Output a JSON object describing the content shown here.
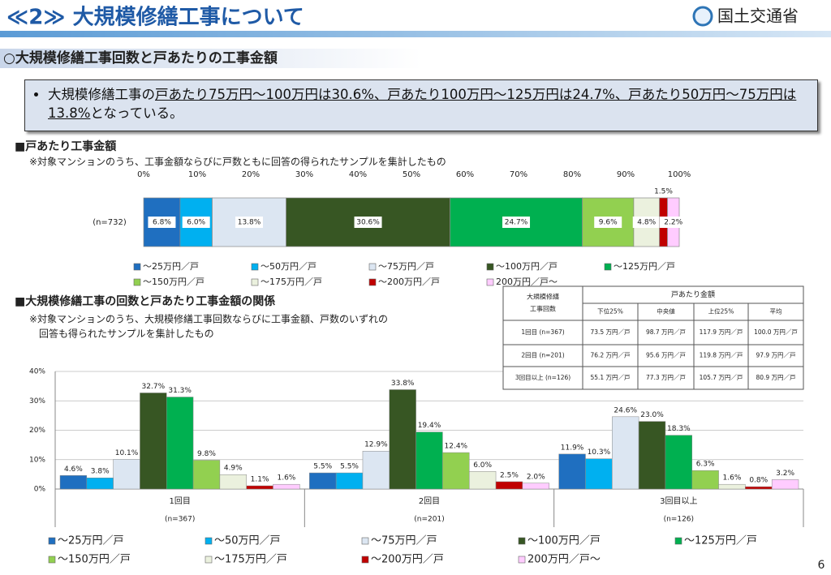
{
  "header": {
    "title": "≪2≫ 大規模修繕工事について",
    "logo": "国土交通省"
  },
  "subtitle": "○大規模修繕工事回数と戸あたりの工事金額",
  "summary": {
    "before": "大規模修繕工事の",
    "underlined": "戸あたり75万円～100万円は30.6%、戸あたり100万円～125万円は24.7%、戸あたり50万円～75万円は13.8%",
    "after": "となっている。"
  },
  "section1": {
    "title": "■戸あたり工事金額",
    "note": "※対象マンションのうち、工事金額ならびに戸数ともに回答の得られたサンプルを集計したもの"
  },
  "section2": {
    "title": "■大規模修繕工事の回数と戸あたり工事金額の関係",
    "note": [
      "※対象マンションのうち、大規模修繕工事回数ならびに工事金額、戸数のいずれの",
      "回答も得られたサンプルを集計したもの"
    ]
  },
  "table": {
    "corner": [
      "大規模修繕",
      "工事回数"
    ],
    "group": "戸あたり金額",
    "columns": [
      "下位25%",
      "中央値",
      "上位25%",
      "平均"
    ],
    "rows": [
      [
        "1回目 (n=367)",
        "73.5 万円／戸",
        "98.7 万円／戸",
        "117.9 万円／戸",
        "100.0 万円／戸"
      ],
      [
        "2回目 (n=201)",
        "76.2 万円／戸",
        "95.6 万円／戸",
        "119.8 万円／戸",
        "97.9 万円／戸"
      ],
      [
        "3回目以上 (n=126)",
        "55.1 万円／戸",
        "77.3 万円／戸",
        "105.7 万円／戸",
        "80.9 万円／戸"
      ]
    ]
  },
  "page_number": "6",
  "chart_data": [
    {
      "type": "stacked-bar-horizontal",
      "categories": [
        "(n=732)"
      ],
      "xlim": [
        0,
        100
      ],
      "xticks": [
        {
          "value": 0,
          "label": "0%"
        },
        {
          "value": 10,
          "label": "10%"
        },
        {
          "value": 20,
          "label": "20%"
        },
        {
          "value": 30,
          "label": "30%"
        },
        {
          "value": 40,
          "label": "40%"
        },
        {
          "value": 50,
          "label": "50%"
        },
        {
          "value": 60,
          "label": "60%"
        },
        {
          "value": 70,
          "label": "70%"
        },
        {
          "value": 80,
          "label": "80%"
        },
        {
          "value": 90,
          "label": "90%"
        },
        {
          "value": 100,
          "label": "100%"
        }
      ],
      "grid": false,
      "series": [
        {
          "name": "～25万円／戸",
          "color": "#1f6fc0",
          "values": [
            6.8
          ],
          "value_labels": [
            "6.8%"
          ]
        },
        {
          "name": "～50万円／戸",
          "color": "#00b0f0",
          "values": [
            6.0
          ],
          "value_labels": [
            "6.0%"
          ]
        },
        {
          "name": "～75万円／戸",
          "color": "#dce6f2",
          "values": [
            13.8
          ],
          "value_labels": [
            "13.8%"
          ]
        },
        {
          "name": "～100万円／戸",
          "color": "#375623",
          "values": [
            30.6
          ],
          "value_labels": [
            "30.6%"
          ]
        },
        {
          "name": "～125万円／戸",
          "color": "#00b050",
          "values": [
            24.7
          ],
          "value_labels": [
            "24.7%"
          ]
        },
        {
          "name": "～150万円／戸",
          "color": "#92d050",
          "values": [
            9.6
          ],
          "value_labels": [
            "9.6%"
          ]
        },
        {
          "name": "～175万円／戸",
          "color": "#ebf1de",
          "values": [
            4.8
          ],
          "value_labels": [
            "4.8%"
          ]
        },
        {
          "name": "～200万円／戸",
          "color": "#c00000",
          "values": [
            1.5
          ],
          "value_labels": [
            "1.5%"
          ]
        },
        {
          "name": "200万円／戸～",
          "color": "#ffccff",
          "values": [
            2.2
          ],
          "value_labels": [
            "2.2%"
          ]
        }
      ]
    },
    {
      "type": "grouped-bar",
      "categories": [
        "1回目",
        "2回目",
        "3回目以上"
      ],
      "category_notes": [
        "(n=367)",
        "(n=201)",
        "(n=126)"
      ],
      "ylim": [
        0,
        40
      ],
      "yticks": [
        {
          "value": 0,
          "label": "0%"
        },
        {
          "value": 10,
          "label": "10%"
        },
        {
          "value": 20,
          "label": "20%"
        },
        {
          "value": 30,
          "label": "30%"
        },
        {
          "value": 40,
          "label": "40%"
        }
      ],
      "grid": true,
      "series": [
        {
          "name": "～25万円／戸",
          "color": "#1f6fc0",
          "values": [
            4.6,
            5.5,
            11.9
          ],
          "value_labels": [
            "4.6%",
            "5.5%",
            "11.9%"
          ]
        },
        {
          "name": "～50万円／戸",
          "color": "#00b0f0",
          "values": [
            3.8,
            5.5,
            10.3
          ],
          "value_labels": [
            "3.8%",
            "5.5%",
            "10.3%"
          ]
        },
        {
          "name": "～75万円／戸",
          "color": "#dce6f2",
          "values": [
            10.1,
            12.9,
            24.6
          ],
          "value_labels": [
            "10.1%",
            "12.9%",
            "24.6%"
          ]
        },
        {
          "name": "～100万円／戸",
          "color": "#375623",
          "values": [
            32.7,
            33.8,
            23.0
          ],
          "value_labels": [
            "32.7%",
            "33.8%",
            "23.0%"
          ]
        },
        {
          "name": "～125万円／戸",
          "color": "#00b050",
          "values": [
            31.3,
            19.4,
            18.3
          ],
          "value_labels": [
            "31.3%",
            "19.4%",
            "18.3%"
          ]
        },
        {
          "name": "～150万円／戸",
          "color": "#92d050",
          "values": [
            9.8,
            12.4,
            6.3
          ],
          "value_labels": [
            "9.8%",
            "12.4%",
            "6.3%"
          ]
        },
        {
          "name": "～175万円／戸",
          "color": "#ebf1de",
          "values": [
            4.9,
            6.0,
            1.6
          ],
          "value_labels": [
            "4.9%",
            "6.0%",
            "1.6%"
          ]
        },
        {
          "name": "～200万円／戸",
          "color": "#c00000",
          "values": [
            1.1,
            2.5,
            0.8
          ],
          "value_labels": [
            "1.1%",
            "2.5%",
            "0.8%"
          ]
        },
        {
          "name": "200万円／戸～",
          "color": "#ffccff",
          "values": [
            1.6,
            2.0,
            3.2
          ],
          "value_labels": [
            "1.6%",
            "2.0%",
            "3.2%"
          ]
        }
      ]
    }
  ]
}
